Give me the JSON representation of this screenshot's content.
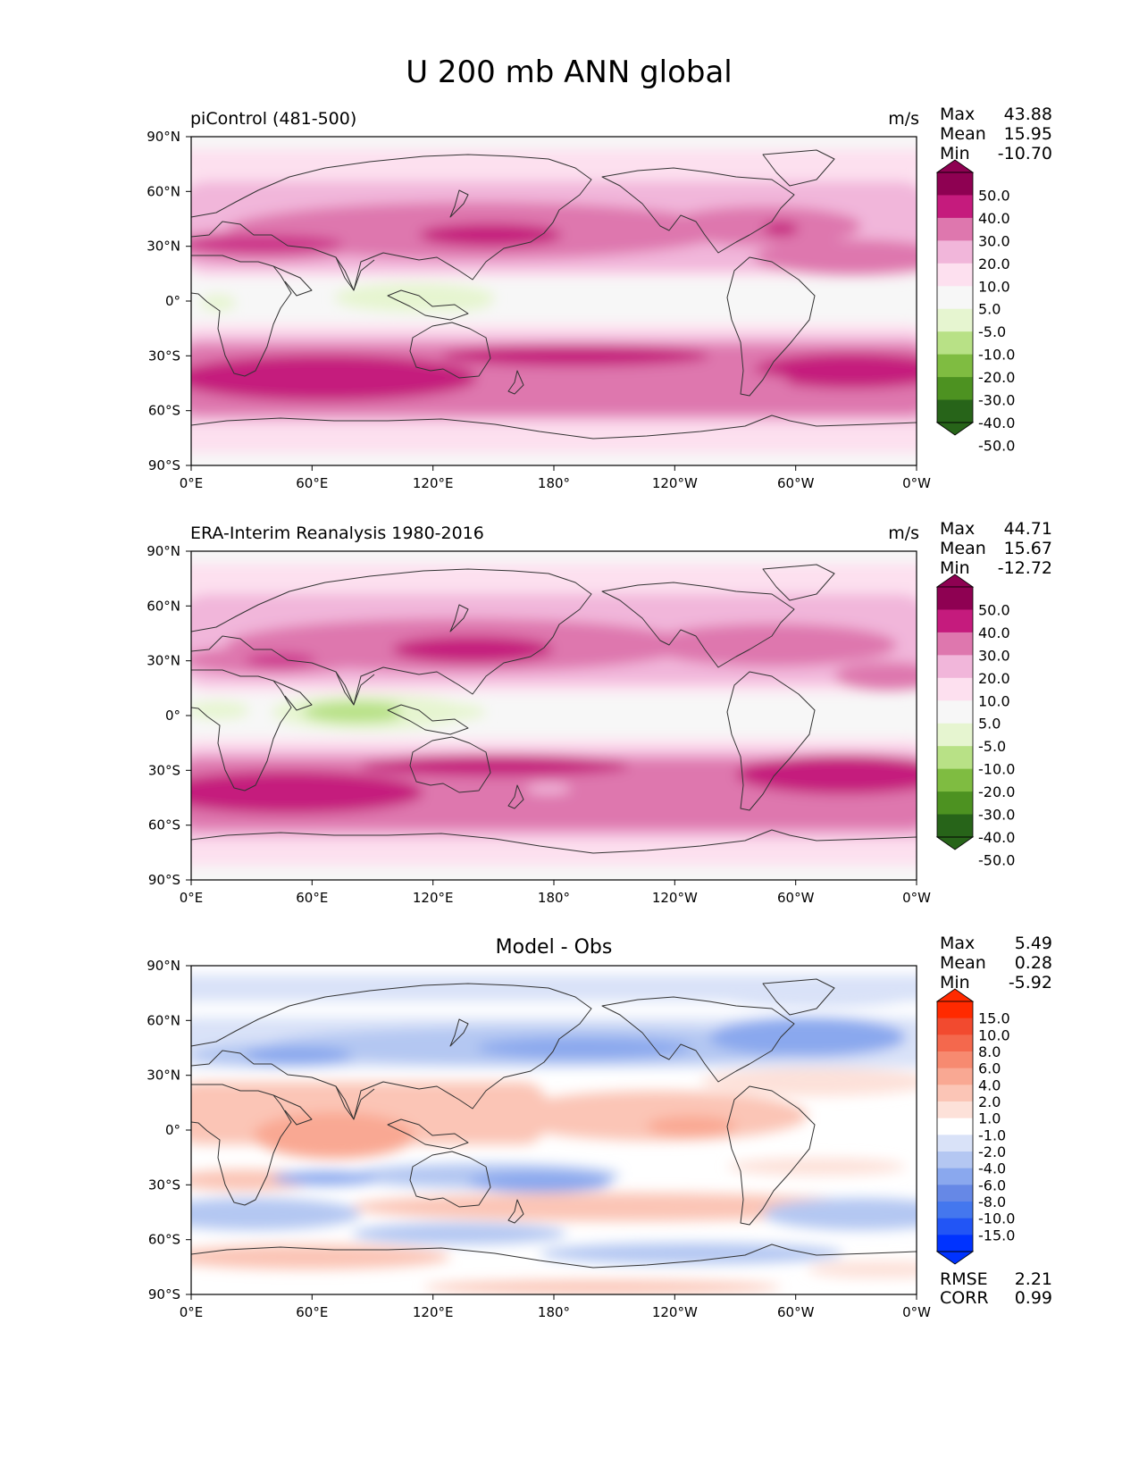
{
  "figure": {
    "title": "U 200 mb ANN global"
  },
  "colors": {
    "prgn": [
      "#276419",
      "#4d9221",
      "#7fbc41",
      "#b8e186",
      "#e6f5d0",
      "#f7f7f7",
      "#fde0ef",
      "#f1b6da",
      "#de77ae",
      "#c51b7d",
      "#8e0152"
    ],
    "diff": [
      "#0033ff",
      "#2255f5",
      "#4477ee",
      "#6688e6",
      "#8aa8ee",
      "#b4c7f2",
      "#d9e2f8",
      "#ffffff",
      "#fde1d9",
      "#fbc5b6",
      "#f9a893",
      "#f78a70",
      "#f4684d",
      "#f24a2f",
      "#ff2a00"
    ],
    "land_outline": "#333333"
  },
  "panels": [
    {
      "id": "model",
      "left_title": "piControl (481-500)",
      "center_title": "",
      "units": "m/s",
      "stats": {
        "labels": [
          "Max",
          "Mean",
          "Min"
        ],
        "values": [
          "43.88",
          "15.95",
          "-10.70"
        ]
      },
      "colorbar": {
        "labels": [
          "50.0",
          "40.0",
          "30.0",
          "20.0",
          "10.0",
          "5.0",
          "-5.0",
          "-10.0",
          "-20.0",
          "-30.0",
          "-40.0",
          "-50.0"
        ]
      }
    },
    {
      "id": "obs",
      "left_title": "ERA-Interim Reanalysis 1980-2016",
      "center_title": "",
      "units": "m/s",
      "stats": {
        "labels": [
          "Max",
          "Mean",
          "Min"
        ],
        "values": [
          "44.71",
          "15.67",
          "-12.72"
        ]
      },
      "colorbar": {
        "labels": [
          "50.0",
          "40.0",
          "30.0",
          "20.0",
          "10.0",
          "5.0",
          "-5.0",
          "-10.0",
          "-20.0",
          "-30.0",
          "-40.0",
          "-50.0"
        ]
      }
    },
    {
      "id": "diff",
      "left_title": "",
      "center_title": "Model - Obs",
      "units": "",
      "stats": {
        "labels": [
          "Max",
          "Mean",
          "Min"
        ],
        "values": [
          "5.49",
          "0.28",
          "-5.92"
        ]
      },
      "colorbar": {
        "labels": [
          "15.0",
          "10.0",
          "8.0",
          "6.0",
          "4.0",
          "2.0",
          "1.0",
          "-1.0",
          "-2.0",
          "-4.0",
          "-6.0",
          "-8.0",
          "-10.0",
          "-15.0"
        ]
      },
      "metrics": {
        "labels": [
          "RMSE",
          "CORR"
        ],
        "values": [
          "2.21",
          "0.99"
        ]
      }
    }
  ],
  "axes": {
    "x_ticks": [
      "0°E",
      "60°E",
      "120°E",
      "180°",
      "120°W",
      "60°W",
      "0°W"
    ],
    "y_ticks": [
      "90°N",
      "60°N",
      "30°N",
      "0°",
      "30°S",
      "60°S",
      "90°S"
    ]
  },
  "chart_data": [
    {
      "type": "heatmap",
      "title": "piControl (481-500)",
      "variable": "U 200 mb ANN",
      "units": "m/s",
      "x": [
        0,
        60,
        120,
        180,
        240,
        300,
        360
      ],
      "y": [
        90,
        60,
        30,
        0,
        -30,
        -60,
        -90
      ],
      "xlim": [
        0,
        360
      ],
      "ylim": [
        -90,
        90
      ],
      "levels": [
        -50,
        -40,
        -30,
        -20,
        -10,
        -5,
        5,
        10,
        20,
        30,
        40,
        50
      ],
      "stats": {
        "max": 43.88,
        "mean": 15.95,
        "min": -10.7
      },
      "features": [
        {
          "lon": 140,
          "lat": 35,
          "value": 43.88
        },
        {
          "lon": 290,
          "lat": 35,
          "value": 35
        },
        {
          "lon": 40,
          "lat": -45,
          "value": 32
        },
        {
          "lon": 120,
          "lat": 0,
          "value": -10.7
        }
      ]
    },
    {
      "type": "heatmap",
      "title": "ERA-Interim Reanalysis 1980-2016",
      "variable": "U 200 mb ANN",
      "units": "m/s",
      "x": [
        0,
        60,
        120,
        180,
        240,
        300,
        360
      ],
      "y": [
        90,
        60,
        30,
        0,
        -30,
        -60,
        -90
      ],
      "xlim": [
        0,
        360
      ],
      "ylim": [
        -90,
        90
      ],
      "levels": [
        -50,
        -40,
        -30,
        -20,
        -10,
        -5,
        5,
        10,
        20,
        30,
        40,
        50
      ],
      "stats": {
        "max": 44.71,
        "mean": 15.67,
        "min": -12.72
      },
      "features": [
        {
          "lon": 140,
          "lat": 35,
          "value": 44.71
        },
        {
          "lon": 290,
          "lat": 35,
          "value": 32
        },
        {
          "lon": 30,
          "lat": -45,
          "value": 33
        },
        {
          "lon": 90,
          "lat": 0,
          "value": -12.72
        }
      ]
    },
    {
      "type": "heatmap",
      "title": "Model - Obs",
      "variable": "U 200 mb ANN",
      "units": "m/s",
      "x": [
        0,
        60,
        120,
        180,
        240,
        300,
        360
      ],
      "y": [
        90,
        60,
        30,
        0,
        -30,
        -60,
        -90
      ],
      "xlim": [
        0,
        360
      ],
      "ylim": [
        -90,
        90
      ],
      "levels": [
        -15,
        -10,
        -8,
        -6,
        -4,
        -2,
        -1,
        1,
        2,
        4,
        6,
        8,
        10,
        15
      ],
      "stats": {
        "max": 5.49,
        "mean": 0.28,
        "min": -5.92,
        "rmse": 2.21,
        "corr": 0.99
      },
      "features": [
        {
          "lon": 75,
          "lat": 5,
          "value": 5.49
        },
        {
          "lon": 215,
          "lat": 0,
          "value": 5
        },
        {
          "lon": 170,
          "lat": -30,
          "value": -5.92
        },
        {
          "lon": 290,
          "lat": 45,
          "value": -5
        }
      ]
    }
  ]
}
